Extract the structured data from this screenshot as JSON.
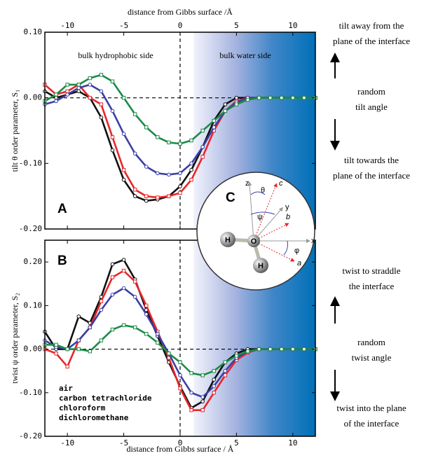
{
  "chart_data": [
    {
      "type": "line",
      "xlabel": "distance from Gibbs surface /Å",
      "ylabel": "tilt θ order parameter, S₁",
      "panel_label": "A",
      "annotations": [
        "bulk hydrophobic side",
        "bulk water side"
      ],
      "x": [
        -12,
        -11,
        -10,
        -9,
        -8,
        -7,
        -6,
        -5,
        -4,
        -3,
        -2,
        -1,
        0,
        1,
        2,
        3,
        4,
        5,
        6,
        7,
        8,
        9,
        10,
        11,
        12
      ],
      "xlim": [
        -12,
        12
      ],
      "xticks": [
        -10,
        -5,
        0,
        5,
        10
      ],
      "ylim": [
        -0.2,
        0.1
      ],
      "yticks": [
        {
          "value": 0.1,
          "label": "0.10"
        },
        {
          "value": 0,
          "label": "0.00"
        },
        {
          "value": -0.1,
          "label": "-0.10"
        },
        {
          "value": -0.2,
          "label": "-0.20"
        }
      ],
      "series": [
        {
          "color": "#111111",
          "values": [
            0.01,
            0.0,
            0.005,
            0.01,
            0.0,
            -0.03,
            -0.08,
            -0.125,
            -0.15,
            -0.157,
            -0.155,
            -0.15,
            -0.135,
            -0.11,
            -0.075,
            -0.035,
            -0.01,
            0.0,
            0,
            0,
            0,
            0,
            0,
            0,
            0
          ]
        },
        {
          "color": "#e8262a",
          "values": [
            0.02,
            0.005,
            0.01,
            0.02,
            0.0,
            -0.01,
            -0.06,
            -0.11,
            -0.14,
            -0.15,
            -0.152,
            -0.15,
            -0.145,
            -0.125,
            -0.09,
            -0.05,
            -0.02,
            -0.005,
            0,
            0,
            0,
            0,
            0,
            0,
            0
          ]
        },
        {
          "color": "#3b3fa6",
          "values": [
            -0.01,
            -0.005,
            0.005,
            0.015,
            0.02,
            0.01,
            -0.02,
            -0.055,
            -0.085,
            -0.105,
            -0.115,
            -0.117,
            -0.115,
            -0.1,
            -0.075,
            -0.045,
            -0.02,
            -0.007,
            0,
            0,
            0,
            0,
            0,
            0,
            0
          ]
        },
        {
          "color": "#1a8b45",
          "values": [
            -0.005,
            0.005,
            0.02,
            0.02,
            0.03,
            0.035,
            0.025,
            0.0,
            -0.025,
            -0.045,
            -0.06,
            -0.068,
            -0.07,
            -0.065,
            -0.05,
            -0.035,
            -0.02,
            -0.01,
            -0.003,
            0,
            0,
            0,
            0,
            0,
            0
          ]
        }
      ]
    },
    {
      "type": "line",
      "xlabel": "distance from Gibbs surface / Å",
      "ylabel": "twist ψ order parameter, S₂",
      "panel_label": "B",
      "legend": "lower left",
      "x": [
        -12,
        -11,
        -10,
        -9,
        -8,
        -7,
        -6,
        -5,
        -4,
        -3,
        -2,
        -1,
        0,
        1,
        2,
        3,
        4,
        5,
        6,
        7,
        8,
        9,
        10,
        11,
        12
      ],
      "xlim": [
        -12,
        12
      ],
      "xticks": [
        -10,
        -5,
        0,
        5,
        10
      ],
      "ylim": [
        -0.2,
        0.25
      ],
      "yticks": [
        {
          "value": 0.2,
          "label": "0.20"
        },
        {
          "value": 0.1,
          "label": "0.10"
        },
        {
          "value": 0,
          "label": "0.00"
        },
        {
          "value": -0.1,
          "label": "-0.10"
        },
        {
          "value": -0.2,
          "label": "-0.20"
        }
      ],
      "series": [
        {
          "name": "air",
          "color": "#111111",
          "values": [
            0.04,
            0.0,
            0.0,
            0.075,
            0.06,
            0.12,
            0.195,
            0.205,
            0.16,
            0.09,
            0.03,
            -0.03,
            -0.085,
            -0.135,
            -0.12,
            -0.07,
            -0.03,
            -0.01,
            0,
            0,
            0,
            0,
            0,
            0,
            0
          ]
        },
        {
          "name": "carbon tetrachloride",
          "color": "#e8262a",
          "values": [
            0.0,
            -0.01,
            -0.04,
            0.02,
            0.05,
            0.11,
            0.165,
            0.18,
            0.155,
            0.1,
            0.04,
            -0.02,
            -0.09,
            -0.14,
            -0.14,
            -0.1,
            -0.06,
            -0.025,
            -0.008,
            0,
            0,
            0,
            0,
            0,
            0
          ]
        },
        {
          "name": "chloroform",
          "color": "#3b3fa6",
          "values": [
            0.02,
            0.005,
            0.0,
            0.02,
            0.05,
            0.09,
            0.125,
            0.14,
            0.12,
            0.08,
            0.035,
            -0.01,
            -0.06,
            -0.1,
            -0.11,
            -0.085,
            -0.05,
            -0.02,
            -0.006,
            0,
            0,
            0,
            0,
            0,
            0
          ]
        },
        {
          "name": "dichloromethane",
          "color": "#1a8b45",
          "values": [
            0.01,
            0.01,
            0.0,
            0.0,
            -0.005,
            0.02,
            0.045,
            0.055,
            0.05,
            0.035,
            0.015,
            -0.01,
            -0.03,
            -0.055,
            -0.06,
            -0.05,
            -0.03,
            -0.015,
            -0.005,
            0,
            0,
            0,
            0,
            0,
            0
          ]
        }
      ]
    }
  ],
  "side_notes": [
    [
      "tilt away from the",
      "plane of the interface"
    ],
    [
      "random",
      "tilt angle"
    ],
    [
      "tilt towards the",
      "plane of the interface"
    ],
    [
      "twist to straddle",
      "the interface"
    ],
    [
      "random",
      "twist angle"
    ],
    [
      "twist into the plane",
      "of the interface"
    ]
  ],
  "inset": {
    "label": "C",
    "axis_labels": [
      "z",
      "y",
      "x"
    ],
    "angle_labels": [
      "θ",
      "ψ",
      "φ"
    ],
    "vector_labels": [
      "c",
      "b",
      "a"
    ],
    "atom_labels": [
      "H",
      "O",
      "H"
    ]
  }
}
